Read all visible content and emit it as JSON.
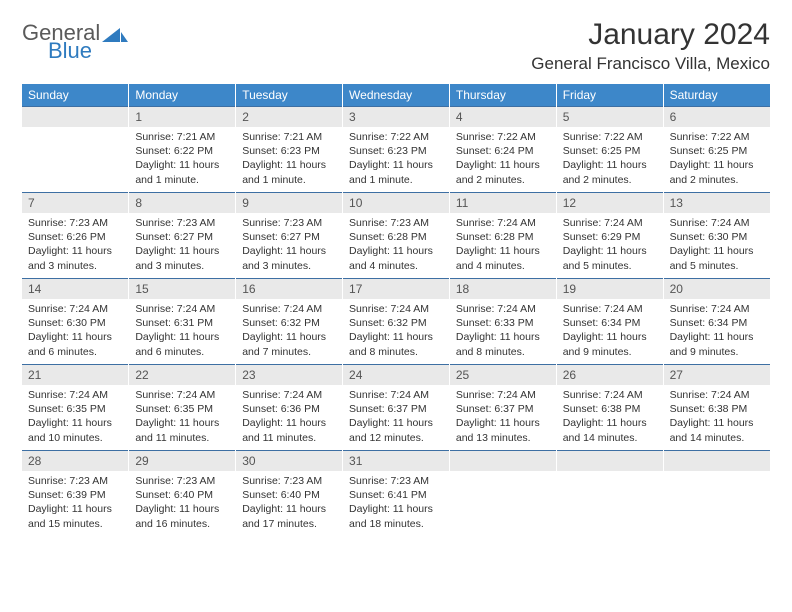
{
  "brand": {
    "general": "General",
    "blue": "Blue"
  },
  "title": {
    "month": "January 2024",
    "location": "General Francisco Villa, Mexico"
  },
  "colors": {
    "header_bg": "#3d87c9",
    "header_text": "#ffffff",
    "daynum_bg": "#e9e9e9",
    "row_border": "#3d6fa3",
    "brand_gray": "#5a5a5a",
    "brand_blue": "#2f7bbf"
  },
  "weekdays": [
    "Sunday",
    "Monday",
    "Tuesday",
    "Wednesday",
    "Thursday",
    "Friday",
    "Saturday"
  ],
  "weeks": [
    [
      null,
      {
        "n": "1",
        "sr": "Sunrise: 7:21 AM",
        "ss": "Sunset: 6:22 PM",
        "d1": "Daylight: 11 hours",
        "d2": "and 1 minute."
      },
      {
        "n": "2",
        "sr": "Sunrise: 7:21 AM",
        "ss": "Sunset: 6:23 PM",
        "d1": "Daylight: 11 hours",
        "d2": "and 1 minute."
      },
      {
        "n": "3",
        "sr": "Sunrise: 7:22 AM",
        "ss": "Sunset: 6:23 PM",
        "d1": "Daylight: 11 hours",
        "d2": "and 1 minute."
      },
      {
        "n": "4",
        "sr": "Sunrise: 7:22 AM",
        "ss": "Sunset: 6:24 PM",
        "d1": "Daylight: 11 hours",
        "d2": "and 2 minutes."
      },
      {
        "n": "5",
        "sr": "Sunrise: 7:22 AM",
        "ss": "Sunset: 6:25 PM",
        "d1": "Daylight: 11 hours",
        "d2": "and 2 minutes."
      },
      {
        "n": "6",
        "sr": "Sunrise: 7:22 AM",
        "ss": "Sunset: 6:25 PM",
        "d1": "Daylight: 11 hours",
        "d2": "and 2 minutes."
      }
    ],
    [
      {
        "n": "7",
        "sr": "Sunrise: 7:23 AM",
        "ss": "Sunset: 6:26 PM",
        "d1": "Daylight: 11 hours",
        "d2": "and 3 minutes."
      },
      {
        "n": "8",
        "sr": "Sunrise: 7:23 AM",
        "ss": "Sunset: 6:27 PM",
        "d1": "Daylight: 11 hours",
        "d2": "and 3 minutes."
      },
      {
        "n": "9",
        "sr": "Sunrise: 7:23 AM",
        "ss": "Sunset: 6:27 PM",
        "d1": "Daylight: 11 hours",
        "d2": "and 3 minutes."
      },
      {
        "n": "10",
        "sr": "Sunrise: 7:23 AM",
        "ss": "Sunset: 6:28 PM",
        "d1": "Daylight: 11 hours",
        "d2": "and 4 minutes."
      },
      {
        "n": "11",
        "sr": "Sunrise: 7:24 AM",
        "ss": "Sunset: 6:28 PM",
        "d1": "Daylight: 11 hours",
        "d2": "and 4 minutes."
      },
      {
        "n": "12",
        "sr": "Sunrise: 7:24 AM",
        "ss": "Sunset: 6:29 PM",
        "d1": "Daylight: 11 hours",
        "d2": "and 5 minutes."
      },
      {
        "n": "13",
        "sr": "Sunrise: 7:24 AM",
        "ss": "Sunset: 6:30 PM",
        "d1": "Daylight: 11 hours",
        "d2": "and 5 minutes."
      }
    ],
    [
      {
        "n": "14",
        "sr": "Sunrise: 7:24 AM",
        "ss": "Sunset: 6:30 PM",
        "d1": "Daylight: 11 hours",
        "d2": "and 6 minutes."
      },
      {
        "n": "15",
        "sr": "Sunrise: 7:24 AM",
        "ss": "Sunset: 6:31 PM",
        "d1": "Daylight: 11 hours",
        "d2": "and 6 minutes."
      },
      {
        "n": "16",
        "sr": "Sunrise: 7:24 AM",
        "ss": "Sunset: 6:32 PM",
        "d1": "Daylight: 11 hours",
        "d2": "and 7 minutes."
      },
      {
        "n": "17",
        "sr": "Sunrise: 7:24 AM",
        "ss": "Sunset: 6:32 PM",
        "d1": "Daylight: 11 hours",
        "d2": "and 8 minutes."
      },
      {
        "n": "18",
        "sr": "Sunrise: 7:24 AM",
        "ss": "Sunset: 6:33 PM",
        "d1": "Daylight: 11 hours",
        "d2": "and 8 minutes."
      },
      {
        "n": "19",
        "sr": "Sunrise: 7:24 AM",
        "ss": "Sunset: 6:34 PM",
        "d1": "Daylight: 11 hours",
        "d2": "and 9 minutes."
      },
      {
        "n": "20",
        "sr": "Sunrise: 7:24 AM",
        "ss": "Sunset: 6:34 PM",
        "d1": "Daylight: 11 hours",
        "d2": "and 9 minutes."
      }
    ],
    [
      {
        "n": "21",
        "sr": "Sunrise: 7:24 AM",
        "ss": "Sunset: 6:35 PM",
        "d1": "Daylight: 11 hours",
        "d2": "and 10 minutes."
      },
      {
        "n": "22",
        "sr": "Sunrise: 7:24 AM",
        "ss": "Sunset: 6:35 PM",
        "d1": "Daylight: 11 hours",
        "d2": "and 11 minutes."
      },
      {
        "n": "23",
        "sr": "Sunrise: 7:24 AM",
        "ss": "Sunset: 6:36 PM",
        "d1": "Daylight: 11 hours",
        "d2": "and 11 minutes."
      },
      {
        "n": "24",
        "sr": "Sunrise: 7:24 AM",
        "ss": "Sunset: 6:37 PM",
        "d1": "Daylight: 11 hours",
        "d2": "and 12 minutes."
      },
      {
        "n": "25",
        "sr": "Sunrise: 7:24 AM",
        "ss": "Sunset: 6:37 PM",
        "d1": "Daylight: 11 hours",
        "d2": "and 13 minutes."
      },
      {
        "n": "26",
        "sr": "Sunrise: 7:24 AM",
        "ss": "Sunset: 6:38 PM",
        "d1": "Daylight: 11 hours",
        "d2": "and 14 minutes."
      },
      {
        "n": "27",
        "sr": "Sunrise: 7:24 AM",
        "ss": "Sunset: 6:38 PM",
        "d1": "Daylight: 11 hours",
        "d2": "and 14 minutes."
      }
    ],
    [
      {
        "n": "28",
        "sr": "Sunrise: 7:23 AM",
        "ss": "Sunset: 6:39 PM",
        "d1": "Daylight: 11 hours",
        "d2": "and 15 minutes."
      },
      {
        "n": "29",
        "sr": "Sunrise: 7:23 AM",
        "ss": "Sunset: 6:40 PM",
        "d1": "Daylight: 11 hours",
        "d2": "and 16 minutes."
      },
      {
        "n": "30",
        "sr": "Sunrise: 7:23 AM",
        "ss": "Sunset: 6:40 PM",
        "d1": "Daylight: 11 hours",
        "d2": "and 17 minutes."
      },
      {
        "n": "31",
        "sr": "Sunrise: 7:23 AM",
        "ss": "Sunset: 6:41 PM",
        "d1": "Daylight: 11 hours",
        "d2": "and 18 minutes."
      },
      null,
      null,
      null
    ]
  ]
}
